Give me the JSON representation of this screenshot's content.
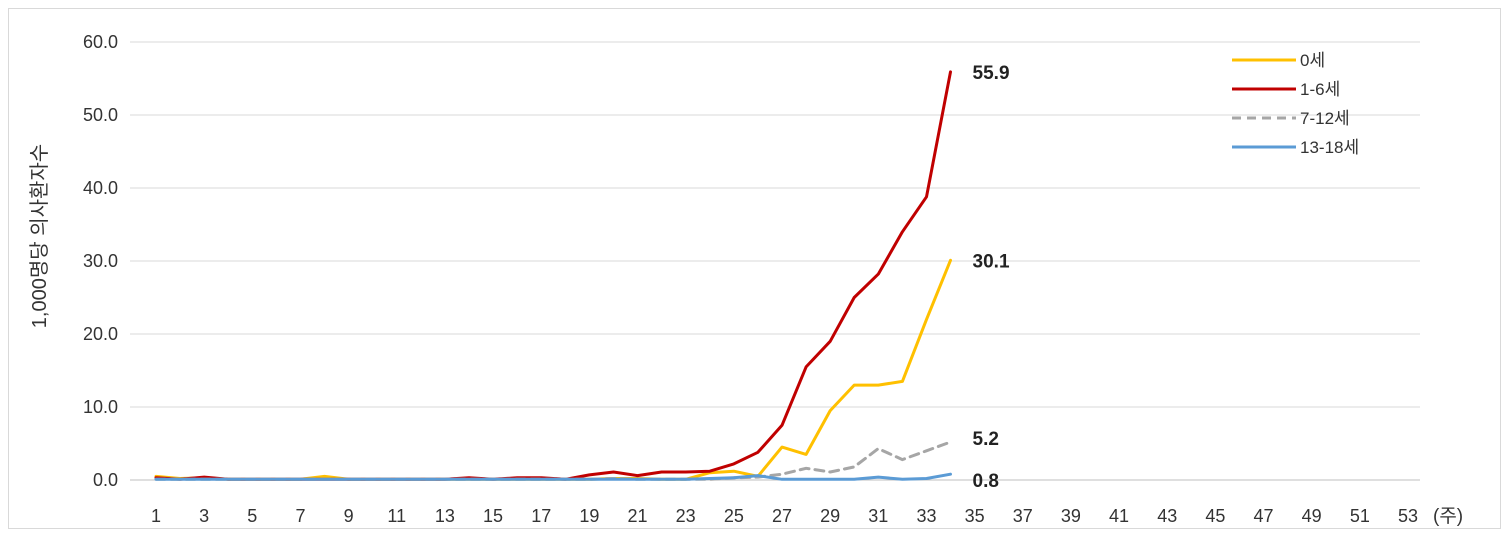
{
  "chart_data": {
    "type": "line",
    "ylabel": "1,000명당 의사환자수",
    "x_unit": "(주)",
    "ylim": [
      0,
      60
    ],
    "xlim": [
      1,
      53
    ],
    "y_ticks": [
      "0.0",
      "10.0",
      "20.0",
      "30.0",
      "40.0",
      "50.0",
      "60.0"
    ],
    "x_ticks": [
      "1",
      "3",
      "5",
      "7",
      "9",
      "11",
      "13",
      "15",
      "17",
      "19",
      "21",
      "23",
      "25",
      "27",
      "29",
      "31",
      "33",
      "35",
      "37",
      "39",
      "41",
      "43",
      "45",
      "47",
      "49",
      "51",
      "53"
    ],
    "grid": "horizontal",
    "legend_position": "top-right",
    "series": [
      {
        "name": "0세",
        "color": "#ffc000",
        "dash": "solid",
        "end_label": "30.1",
        "x": [
          1,
          2,
          3,
          4,
          5,
          6,
          7,
          8,
          9,
          10,
          11,
          12,
          13,
          14,
          15,
          16,
          17,
          18,
          19,
          20,
          21,
          22,
          23,
          24,
          25,
          26,
          27,
          28,
          29,
          30,
          31,
          32,
          33,
          34
        ],
        "values": [
          0.5,
          0.2,
          0.3,
          0.1,
          0.1,
          0.1,
          0.1,
          0.5,
          0.1,
          0.1,
          0.1,
          0.1,
          0.1,
          0.1,
          0.1,
          0.1,
          0.1,
          0.1,
          0.1,
          0.2,
          0.2,
          0.1,
          0.1,
          1.0,
          1.2,
          0.5,
          4.5,
          3.5,
          9.5,
          13.0,
          13.0,
          13.5,
          22.0,
          30.1
        ]
      },
      {
        "name": "1-6세",
        "color": "#c00000",
        "dash": "solid",
        "end_label": "55.9",
        "x": [
          1,
          2,
          3,
          4,
          5,
          6,
          7,
          8,
          9,
          10,
          11,
          12,
          13,
          14,
          15,
          16,
          17,
          18,
          19,
          20,
          21,
          22,
          23,
          24,
          25,
          26,
          27,
          28,
          29,
          30,
          31,
          32,
          33,
          34
        ],
        "values": [
          0.3,
          0.1,
          0.4,
          0.1,
          0.1,
          0.1,
          0.1,
          0.1,
          0.1,
          0.1,
          0.1,
          0.1,
          0.1,
          0.3,
          0.1,
          0.3,
          0.3,
          0.1,
          0.7,
          1.1,
          0.6,
          1.1,
          1.1,
          1.2,
          2.2,
          3.8,
          7.5,
          15.5,
          19.0,
          25.0,
          28.2,
          34.0,
          38.8,
          55.9
        ]
      },
      {
        "name": "7-12세",
        "color": "#a6a6a6",
        "dash": "dashed",
        "end_label": "5.2",
        "x": [
          1,
          2,
          3,
          4,
          5,
          6,
          7,
          8,
          9,
          10,
          11,
          12,
          13,
          14,
          15,
          16,
          17,
          18,
          19,
          20,
          21,
          22,
          23,
          24,
          25,
          26,
          27,
          28,
          29,
          30,
          31,
          32,
          33,
          34
        ],
        "values": [
          0.1,
          0.1,
          0.1,
          0.1,
          0.1,
          0.1,
          0.1,
          0.1,
          0.1,
          0.1,
          0.1,
          0.1,
          0.1,
          0.1,
          0.1,
          0.1,
          0.1,
          0.1,
          0.1,
          0.2,
          0.1,
          0.1,
          0.1,
          0.1,
          0.3,
          0.4,
          0.8,
          1.6,
          1.1,
          1.8,
          4.3,
          2.8,
          4.0,
          5.2
        ]
      },
      {
        "name": "13-18세",
        "color": "#5b9bd5",
        "dash": "solid",
        "end_label": "0.8",
        "x": [
          1,
          2,
          3,
          4,
          5,
          6,
          7,
          8,
          9,
          10,
          11,
          12,
          13,
          14,
          15,
          16,
          17,
          18,
          19,
          20,
          21,
          22,
          23,
          24,
          25,
          26,
          27,
          28,
          29,
          30,
          31,
          32,
          33,
          34
        ],
        "values": [
          0.1,
          0.1,
          0.1,
          0.1,
          0.1,
          0.1,
          0.1,
          0.1,
          0.1,
          0.1,
          0.1,
          0.1,
          0.1,
          0.1,
          0.1,
          0.1,
          0.1,
          0.1,
          0.1,
          0.1,
          0.1,
          0.1,
          0.1,
          0.2,
          0.3,
          0.6,
          0.1,
          0.1,
          0.1,
          0.1,
          0.4,
          0.1,
          0.2,
          0.8
        ]
      }
    ]
  }
}
